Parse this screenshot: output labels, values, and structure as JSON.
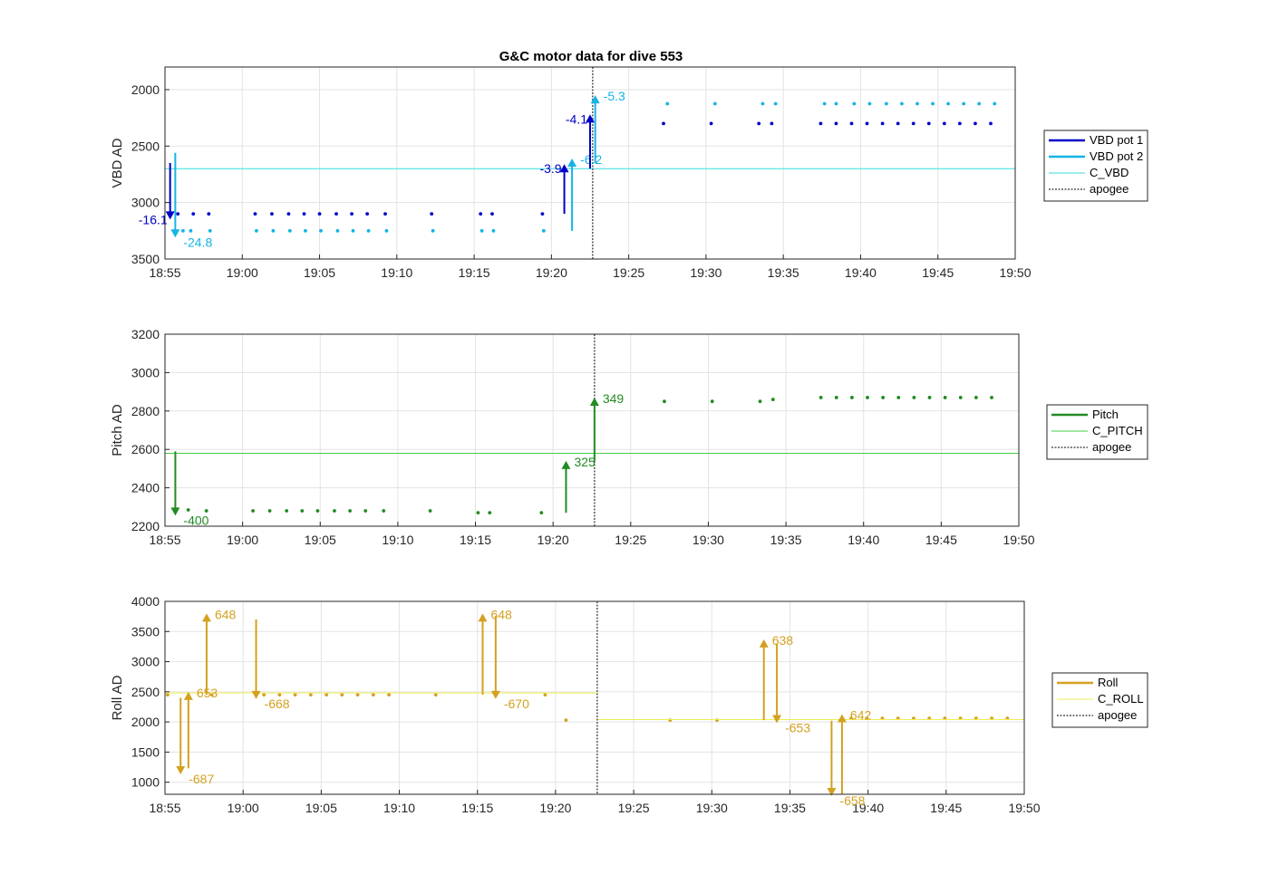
{
  "chart_data": [
    {
      "type": "scatter",
      "title": "G&C motor data for dive 553",
      "ylabel": "VBD AD",
      "y_reversed": true,
      "ylim": [
        1800,
        3500
      ],
      "yticks": [
        2000,
        2500,
        3000,
        3500
      ],
      "x_range": [
        "18:55",
        "19:50"
      ],
      "xticks": [
        "18:55",
        "19:00",
        "19:05",
        "19:10",
        "19:15",
        "19:20",
        "19:25",
        "19:30",
        "19:35",
        "19:40",
        "19:45",
        "19:50"
      ],
      "grid": true,
      "legend_position": "outside-right",
      "series": [
        {
          "name": "VBD pot 1",
          "color": "#0000c8",
          "marker": "dot",
          "x": [
            "18:55:50",
            "18:56:50",
            "18:57:50",
            "19:00:50",
            "19:01:55",
            "19:03:00",
            "19:04:00",
            "19:05:00",
            "19:06:05",
            "19:07:05",
            "19:08:05",
            "19:09:15",
            "19:12:15",
            "19:15:25",
            "19:16:10",
            "19:19:25",
            "19:27:15",
            "19:30:20",
            "19:33:25",
            "19:34:15",
            "19:37:25",
            "19:38:25",
            "19:39:25",
            "19:40:25",
            "19:41:25",
            "19:42:25",
            "19:43:25",
            "19:44:25",
            "19:45:25",
            "19:46:25",
            "19:47:25",
            "19:48:25"
          ],
          "y": [
            3100,
            3100,
            3100,
            3100,
            3100,
            3100,
            3100,
            3100,
            3100,
            3100,
            3100,
            3100,
            3100,
            3100,
            3100,
            3100,
            2300,
            2300,
            2300,
            2300,
            2300,
            2300,
            2300,
            2300,
            2300,
            2300,
            2300,
            2300,
            2300,
            2300,
            2300,
            2300
          ]
        },
        {
          "name": "VBD pot 2",
          "color": "#14b4e6",
          "marker": "dot",
          "x": [
            "18:56:10",
            "18:56:40",
            "18:57:55",
            "19:00:55",
            "19:02:00",
            "19:03:05",
            "19:04:05",
            "19:05:05",
            "19:06:10",
            "19:07:10",
            "19:08:10",
            "19:09:20",
            "19:12:20",
            "19:15:30",
            "19:16:15",
            "19:19:30",
            "19:27:30",
            "19:30:35",
            "19:33:40",
            "19:34:30",
            "19:37:40",
            "19:38:25",
            "19:39:35",
            "19:40:35",
            "19:41:40",
            "19:42:40",
            "19:43:40",
            "19:44:40",
            "19:45:40",
            "19:46:40",
            "19:47:40",
            "19:48:40"
          ],
          "y": [
            3250,
            3250,
            3250,
            3250,
            3250,
            3250,
            3250,
            3250,
            3250,
            3250,
            3250,
            3250,
            3250,
            3250,
            3250,
            3250,
            2125,
            2125,
            2125,
            2125,
            2125,
            2125,
            2125,
            2125,
            2125,
            2125,
            2125,
            2125,
            2125,
            2125,
            2125,
            2125
          ]
        },
        {
          "name": "C_VBD",
          "color": "#33dddd",
          "line": "solid-thin",
          "y_const": 2700
        },
        {
          "name": "apogee",
          "color": "#555555",
          "line": "dotted",
          "x_const": "19:22:40"
        }
      ],
      "moves": [
        {
          "x": "18:55:20",
          "from": 2650,
          "to": 3150,
          "label": "-16.1",
          "color": "#0000c8"
        },
        {
          "x": "18:55:40",
          "from": 2560,
          "to": 3310,
          "label": "-24.8",
          "color": "#14b4e6"
        },
        {
          "x": "19:20:50",
          "from": 3100,
          "to": 2660,
          "label": "-3.9",
          "color": "#0000c8"
        },
        {
          "x": "19:21:20",
          "from": 3250,
          "to": 2610,
          "label": "-6.2",
          "color": "#14b4e6"
        },
        {
          "x": "19:22:30",
          "from": 2700,
          "to": 2220,
          "label": "-4.1",
          "color": "#0000c8"
        },
        {
          "x": "19:22:50",
          "from": 2650,
          "to": 2050,
          "label": "-5.3",
          "color": "#14b4e6"
        }
      ]
    },
    {
      "type": "scatter",
      "ylabel": "Pitch AD",
      "ylim": [
        2200,
        3200
      ],
      "yticks": [
        2200,
        2400,
        2600,
        2800,
        3000,
        3200
      ],
      "x_range": [
        "18:55",
        "19:50"
      ],
      "xticks": [
        "18:55",
        "19:00",
        "19:05",
        "19:10",
        "19:15",
        "19:20",
        "19:25",
        "19:30",
        "19:35",
        "19:40",
        "19:45",
        "19:50"
      ],
      "grid": true,
      "legend_position": "outside-right",
      "series": [
        {
          "name": "Pitch",
          "color": "#228b22",
          "marker": "dot",
          "x": [
            "18:56:30",
            "18:57:40",
            "19:00:40",
            "19:01:45",
            "19:02:50",
            "19:03:50",
            "19:04:50",
            "19:05:55",
            "19:06:55",
            "19:07:55",
            "19:09:05",
            "19:12:05",
            "19:15:10",
            "19:15:55",
            "19:19:15",
            "19:27:10",
            "19:30:15",
            "19:33:20",
            "19:34:10",
            "19:37:15",
            "19:38:15",
            "19:39:15",
            "19:40:15",
            "19:41:15",
            "19:42:15",
            "19:43:15",
            "19:44:15",
            "19:45:15",
            "19:46:15",
            "19:47:15",
            "19:48:15"
          ],
          "y": [
            2285,
            2280,
            2280,
            2280,
            2280,
            2280,
            2280,
            2280,
            2280,
            2280,
            2280,
            2280,
            2270,
            2270,
            2270,
            2850,
            2850,
            2850,
            2860,
            2870,
            2870,
            2870,
            2870,
            2870,
            2870,
            2870,
            2870,
            2870,
            2870,
            2870,
            2870
          ]
        },
        {
          "name": "C_PITCH",
          "color": "#44cc44",
          "line": "solid-thin",
          "y_const": 2580
        },
        {
          "name": "apogee",
          "color": "#555555",
          "line": "dotted",
          "x_const": "19:22:40"
        }
      ],
      "moves": [
        {
          "x": "18:55:40",
          "from": 2590,
          "to": 2255,
          "label": "-400",
          "color": "#228b22"
        },
        {
          "x": "19:20:50",
          "from": 2270,
          "to": 2540,
          "label": "325",
          "color": "#228b22"
        },
        {
          "x": "19:22:40",
          "from": 2540,
          "to": 2870,
          "label": "349",
          "color": "#228b22"
        }
      ]
    },
    {
      "type": "scatter",
      "ylabel": "Roll AD",
      "ylim": [
        800,
        4000
      ],
      "yticks": [
        1000,
        1500,
        2000,
        2500,
        3000,
        3500,
        4000
      ],
      "x_range": [
        "18:55",
        "19:50"
      ],
      "xticks": [
        "18:55",
        "19:00",
        "19:05",
        "19:10",
        "19:15",
        "19:20",
        "19:25",
        "19:30",
        "19:35",
        "19:40",
        "19:45",
        "19:50"
      ],
      "grid": true,
      "legend_position": "outside-right",
      "series": [
        {
          "name": "Roll",
          "color": "#d4a020",
          "marker": "dot",
          "x": [
            "18:55:10",
            "18:58:00",
            "19:01:20",
            "19:02:20",
            "19:03:20",
            "19:04:20",
            "19:05:20",
            "19:06:20",
            "19:07:20",
            "19:08:20",
            "19:09:20",
            "19:12:20",
            "19:19:20",
            "19:20:40",
            "19:27:20",
            "19:30:20",
            "19:38:55",
            "19:39:55",
            "19:40:55",
            "19:41:55",
            "19:42:55",
            "19:43:55",
            "19:44:55",
            "19:45:55",
            "19:46:55",
            "19:47:55",
            "19:48:55"
          ],
          "y": [
            2450,
            2450,
            2450,
            2450,
            2450,
            2450,
            2450,
            2450,
            2450,
            2450,
            2450,
            2450,
            2450,
            2030,
            2030,
            2030,
            2060,
            2060,
            2060,
            2060,
            2060,
            2060,
            2060,
            2060,
            2060,
            2060,
            2060
          ]
        },
        {
          "name": "C_ROLL",
          "color": "#eeee55",
          "line": "solid-thin",
          "y_const": [
            2480,
            2040
          ],
          "change_at": "19:22:40"
        },
        {
          "name": "apogee",
          "color": "#555555",
          "line": "dotted",
          "x_const": "19:22:40"
        }
      ],
      "moves": [
        {
          "x": "18:56:00",
          "from": 2400,
          "to": 1130,
          "label": "-687",
          "color": "#d4a020"
        },
        {
          "x": "18:56:30",
          "from": 1230,
          "to": 2500,
          "label": "653",
          "color": "#d4a020"
        },
        {
          "x": "18:57:40",
          "from": 2450,
          "to": 3800,
          "label": "648",
          "color": "#d4a020"
        },
        {
          "x": "19:00:50",
          "from": 3700,
          "to": 2380,
          "label": "-668",
          "color": "#d4a020"
        },
        {
          "x": "19:15:20",
          "from": 2450,
          "to": 3800,
          "label": "648",
          "color": "#d4a020"
        },
        {
          "x": "19:16:10",
          "from": 3760,
          "to": 2380,
          "label": "-670",
          "color": "#d4a020"
        },
        {
          "x": "19:33:20",
          "from": 2030,
          "to": 3370,
          "label": "638",
          "color": "#d4a020"
        },
        {
          "x": "19:34:10",
          "from": 3300,
          "to": 1980,
          "label": "-653",
          "color": "#d4a020"
        },
        {
          "x": "19:37:40",
          "from": 2020,
          "to": 770,
          "label": "-658",
          "color": "#d4a020"
        },
        {
          "x": "19:38:20",
          "from": 800,
          "to": 2130,
          "label": "642",
          "color": "#d4a020"
        }
      ]
    }
  ]
}
